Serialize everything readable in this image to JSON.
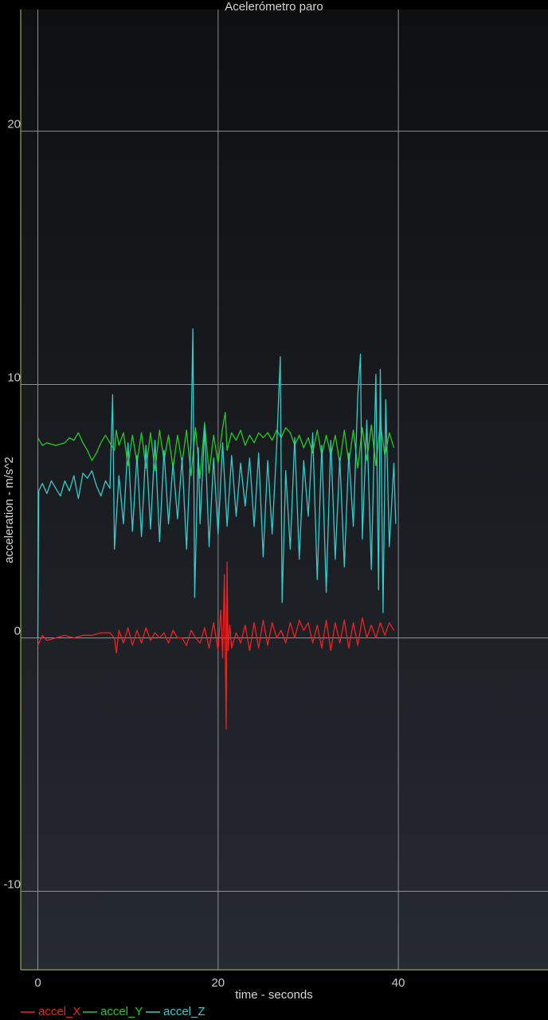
{
  "chart_data": {
    "type": "line",
    "title": "Acelerómetro paro",
    "xlabel": "time - seconds",
    "ylabel": "acceleration - m/s^2",
    "xlim": [
      -1.9,
      56.6
    ],
    "ylim": [
      -13.1,
      24.8
    ],
    "xticks": [
      0,
      20,
      40
    ],
    "yticks": [
      -10,
      0,
      10,
      20
    ],
    "grid": true,
    "legend_position": "bottom-left",
    "series": [
      {
        "name": "accel_X",
        "color": "#ee2222",
        "points": [
          [
            0,
            -0.3
          ],
          [
            0.5,
            0.1
          ],
          [
            1,
            -0.1
          ],
          [
            2,
            0.0
          ],
          [
            3,
            0.1
          ],
          [
            4,
            0.0
          ],
          [
            5,
            0.1
          ],
          [
            6,
            0.1
          ],
          [
            7,
            0.2
          ],
          [
            8,
            0.2
          ],
          [
            8.5,
            0.0
          ],
          [
            8.7,
            -0.6
          ],
          [
            9,
            0.3
          ],
          [
            9.5,
            -0.2
          ],
          [
            10,
            0.4
          ],
          [
            10.5,
            -0.3
          ],
          [
            11,
            0.3
          ],
          [
            11.5,
            -0.2
          ],
          [
            12,
            0.4
          ],
          [
            12.5,
            -0.1
          ],
          [
            13,
            0.2
          ],
          [
            13.5,
            0.0
          ],
          [
            14,
            0.2
          ],
          [
            14.5,
            -0.2
          ],
          [
            15,
            0.3
          ],
          [
            15.5,
            0.0
          ],
          [
            16,
            0.0
          ],
          [
            16.5,
            -0.3
          ],
          [
            17,
            0.3
          ],
          [
            17.5,
            0.0
          ],
          [
            18,
            -0.2
          ],
          [
            18.5,
            0.4
          ],
          [
            19,
            -0.4
          ],
          [
            19.5,
            0.6
          ],
          [
            20,
            -0.5
          ],
          [
            20.3,
            1.1
          ],
          [
            20.5,
            -0.8
          ],
          [
            20.7,
            2.5
          ],
          [
            20.9,
            -3.6
          ],
          [
            21.0,
            3.0
          ],
          [
            21.1,
            -0.5
          ],
          [
            21.3,
            0.5
          ],
          [
            21.5,
            -0.4
          ],
          [
            22,
            0.2
          ],
          [
            22.5,
            -0.2
          ],
          [
            23,
            0.5
          ],
          [
            23.5,
            -0.5
          ],
          [
            24,
            0.6
          ],
          [
            24.5,
            -0.4
          ],
          [
            25,
            0.7
          ],
          [
            25.5,
            -0.3
          ],
          [
            26,
            0.6
          ],
          [
            26.5,
            0.0
          ],
          [
            27,
            0.3
          ],
          [
            27.5,
            -0.2
          ],
          [
            28,
            0.6
          ],
          [
            28.5,
            0.0
          ],
          [
            29,
            0.7
          ],
          [
            29.5,
            0.3
          ],
          [
            30,
            0.6
          ],
          [
            30.5,
            -0.2
          ],
          [
            31,
            0.5
          ],
          [
            31.5,
            -0.4
          ],
          [
            32,
            0.7
          ],
          [
            32.5,
            -0.5
          ],
          [
            33,
            0.6
          ],
          [
            33.5,
            -0.2
          ],
          [
            34,
            0.7
          ],
          [
            34.5,
            -0.4
          ],
          [
            35,
            0.6
          ],
          [
            35.5,
            -0.3
          ],
          [
            36,
            0.8
          ],
          [
            36.5,
            0.0
          ],
          [
            37,
            0.5
          ],
          [
            37.5,
            0.0
          ],
          [
            38,
            0.6
          ],
          [
            38.5,
            0.1
          ],
          [
            39,
            0.6
          ],
          [
            39.5,
            0.3
          ]
        ]
      },
      {
        "name": "accel_Y",
        "color": "#22cc22",
        "points": [
          [
            0,
            7.9
          ],
          [
            0.5,
            7.6
          ],
          [
            1,
            7.7
          ],
          [
            2,
            7.6
          ],
          [
            3,
            7.7
          ],
          [
            3.5,
            7.9
          ],
          [
            4,
            7.8
          ],
          [
            4.5,
            8.1
          ],
          [
            5,
            7.7
          ],
          [
            5.5,
            7.4
          ],
          [
            6,
            7.0
          ],
          [
            6.5,
            7.3
          ],
          [
            7,
            7.7
          ],
          [
            7.5,
            8.0
          ],
          [
            8,
            7.7
          ],
          [
            8.5,
            7.4
          ],
          [
            8.7,
            8.2
          ],
          [
            9,
            7.6
          ],
          [
            9.5,
            8.1
          ],
          [
            10,
            6.8
          ],
          [
            10.5,
            8.0
          ],
          [
            11,
            6.9
          ],
          [
            11.5,
            8.1
          ],
          [
            12,
            6.7
          ],
          [
            12.5,
            8.1
          ],
          [
            13,
            6.6
          ],
          [
            13.5,
            8.2
          ],
          [
            14,
            7.0
          ],
          [
            14.5,
            8.0
          ],
          [
            15,
            6.7
          ],
          [
            15.5,
            8.0
          ],
          [
            16,
            6.9
          ],
          [
            16.5,
            8.2
          ],
          [
            17,
            6.4
          ],
          [
            17.5,
            8.3
          ],
          [
            18,
            6.3
          ],
          [
            18.5,
            8.5
          ],
          [
            19,
            6.5
          ],
          [
            19.5,
            8.0
          ],
          [
            20,
            6.9
          ],
          [
            20.5,
            8.3
          ],
          [
            20.8,
            8.9
          ],
          [
            21,
            7.4
          ],
          [
            21.5,
            8.1
          ],
          [
            22,
            7.8
          ],
          [
            22.5,
            8.2
          ],
          [
            23,
            7.6
          ],
          [
            23.5,
            8.0
          ],
          [
            24,
            7.7
          ],
          [
            24.5,
            8.1
          ],
          [
            25,
            7.9
          ],
          [
            25.5,
            8.1
          ],
          [
            26,
            7.8
          ],
          [
            26.5,
            8.2
          ],
          [
            27,
            7.9
          ],
          [
            27.5,
            8.3
          ],
          [
            28,
            8.1
          ],
          [
            28.5,
            7.6
          ],
          [
            29,
            8.0
          ],
          [
            29.5,
            7.5
          ],
          [
            30,
            7.9
          ],
          [
            30.5,
            7.3
          ],
          [
            31,
            8.2
          ],
          [
            31.5,
            7.2
          ],
          [
            32,
            8.0
          ],
          [
            32.5,
            7.2
          ],
          [
            33,
            8.0
          ],
          [
            33.5,
            6.9
          ],
          [
            34,
            8.2
          ],
          [
            34.5,
            6.9
          ],
          [
            35,
            8.2
          ],
          [
            35.5,
            6.7
          ],
          [
            36,
            8.3
          ],
          [
            36.5,
            7.0
          ],
          [
            37,
            8.4
          ],
          [
            37.5,
            6.8
          ],
          [
            38,
            8.5
          ],
          [
            38.5,
            7.2
          ],
          [
            39,
            8.1
          ],
          [
            39.5,
            7.5
          ]
        ]
      },
      {
        "name": "accel_Z",
        "color": "#33cccc",
        "points": [
          [
            0,
            0.0
          ],
          [
            0.1,
            5.8
          ],
          [
            0.5,
            6.1
          ],
          [
            1,
            5.7
          ],
          [
            1.5,
            6.2
          ],
          [
            2,
            5.9
          ],
          [
            2.5,
            5.6
          ],
          [
            3,
            6.2
          ],
          [
            3.5,
            5.8
          ],
          [
            4,
            6.4
          ],
          [
            4.5,
            5.5
          ],
          [
            5,
            6.5
          ],
          [
            5.5,
            6.3
          ],
          [
            6,
            6.6
          ],
          [
            6.5,
            6.0
          ],
          [
            7,
            5.6
          ],
          [
            7.5,
            6.2
          ],
          [
            8,
            5.9
          ],
          [
            8.3,
            9.6
          ],
          [
            8.5,
            3.5
          ],
          [
            9,
            6.4
          ],
          [
            9.5,
            4.5
          ],
          [
            10,
            7.7
          ],
          [
            10.5,
            4.2
          ],
          [
            11,
            7.2
          ],
          [
            11.5,
            4.0
          ],
          [
            12,
            7.6
          ],
          [
            12.5,
            4.3
          ],
          [
            13,
            7.8
          ],
          [
            13.5,
            3.8
          ],
          [
            14,
            7.4
          ],
          [
            14.5,
            4.5
          ],
          [
            15,
            6.9
          ],
          [
            15.5,
            4.7
          ],
          [
            16,
            7.1
          ],
          [
            16.5,
            3.5
          ],
          [
            17,
            7.8
          ],
          [
            17.2,
            12.2
          ],
          [
            17.4,
            1.6
          ],
          [
            17.8,
            7.5
          ],
          [
            18,
            4.5
          ],
          [
            18.5,
            8.3
          ],
          [
            19,
            3.6
          ],
          [
            19.5,
            7.1
          ],
          [
            20,
            4.1
          ],
          [
            20.5,
            7.7
          ],
          [
            21,
            4.4
          ],
          [
            21.5,
            7.2
          ],
          [
            22,
            4.8
          ],
          [
            22.5,
            6.9
          ],
          [
            23,
            5.2
          ],
          [
            23.5,
            7.1
          ],
          [
            24,
            4.4
          ],
          [
            24.5,
            7.3
          ],
          [
            25,
            3.2
          ],
          [
            25.5,
            7.0
          ],
          [
            26,
            4.1
          ],
          [
            26.5,
            7.6
          ],
          [
            26.9,
            11.1
          ],
          [
            27.1,
            1.4
          ],
          [
            27.5,
            6.6
          ],
          [
            28,
            3.5
          ],
          [
            28.5,
            7.9
          ],
          [
            29,
            3.1
          ],
          [
            29.5,
            7.0
          ],
          [
            30,
            4.8
          ],
          [
            30.5,
            8.1
          ],
          [
            31,
            2.3
          ],
          [
            31.5,
            7.6
          ],
          [
            32,
            1.8
          ],
          [
            32.5,
            7.8
          ],
          [
            33,
            3.1
          ],
          [
            33.5,
            7.1
          ],
          [
            34,
            2.8
          ],
          [
            34.5,
            7.3
          ],
          [
            35,
            4.4
          ],
          [
            35.5,
            9.6
          ],
          [
            35.8,
            11.2
          ],
          [
            36,
            3.9
          ],
          [
            36.5,
            8.6
          ],
          [
            37,
            2.7
          ],
          [
            37.5,
            10.4
          ],
          [
            37.8,
            1.9
          ],
          [
            38,
            10.6
          ],
          [
            38.3,
            1.0
          ],
          [
            38.6,
            9.4
          ],
          [
            39,
            3.6
          ],
          [
            39.5,
            6.9
          ],
          [
            39.7,
            4.5
          ]
        ]
      }
    ]
  }
}
